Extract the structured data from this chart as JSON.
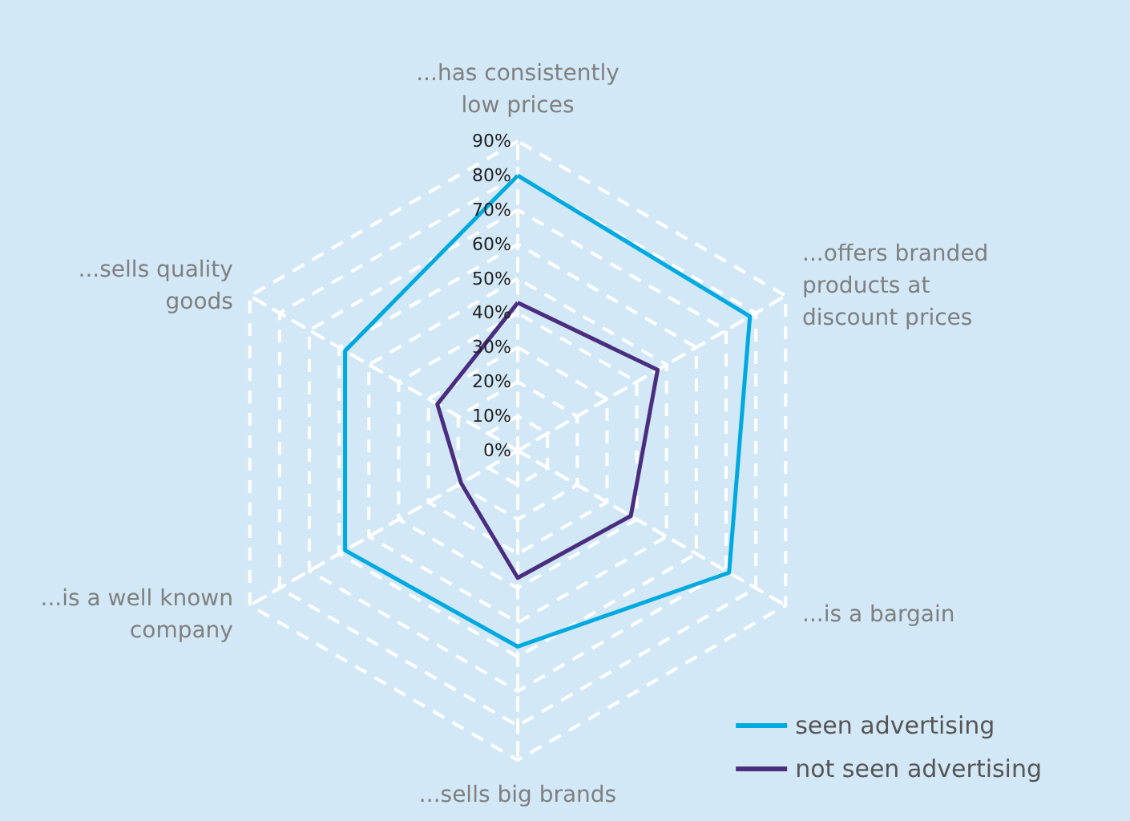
{
  "chart_data": {
    "type": "radar",
    "categories": [
      "...has consistently\nlow prices",
      "...offers branded\nproducts at\ndiscount prices",
      "...is a bargain",
      "...sells big brands",
      "...is a well known\ncompany",
      "...sells quality\ngoods"
    ],
    "series": [
      {
        "name": "seen advertising",
        "color": "#00a9e0",
        "values": [
          80,
          78,
          71,
          57,
          58,
          58
        ]
      },
      {
        "name": "not seen advertising",
        "color": "#4a2d7f",
        "values": [
          43,
          47,
          38,
          37,
          19,
          27
        ]
      }
    ],
    "ylim": [
      0,
      90
    ],
    "yticks": [
      {
        "value": 0,
        "label": "0%"
      },
      {
        "value": 10,
        "label": "10%"
      },
      {
        "value": 20,
        "label": "20%"
      },
      {
        "value": 30,
        "label": "30%"
      },
      {
        "value": 40,
        "label": "40%"
      },
      {
        "value": 50,
        "label": "50%"
      },
      {
        "value": 60,
        "label": "60%"
      },
      {
        "value": 70,
        "label": "70%"
      },
      {
        "value": 80,
        "label": "80%"
      },
      {
        "value": 90,
        "label": "90%"
      }
    ],
    "grid": true,
    "legend": "bottom right",
    "marker": "none",
    "line_style": "solid"
  }
}
